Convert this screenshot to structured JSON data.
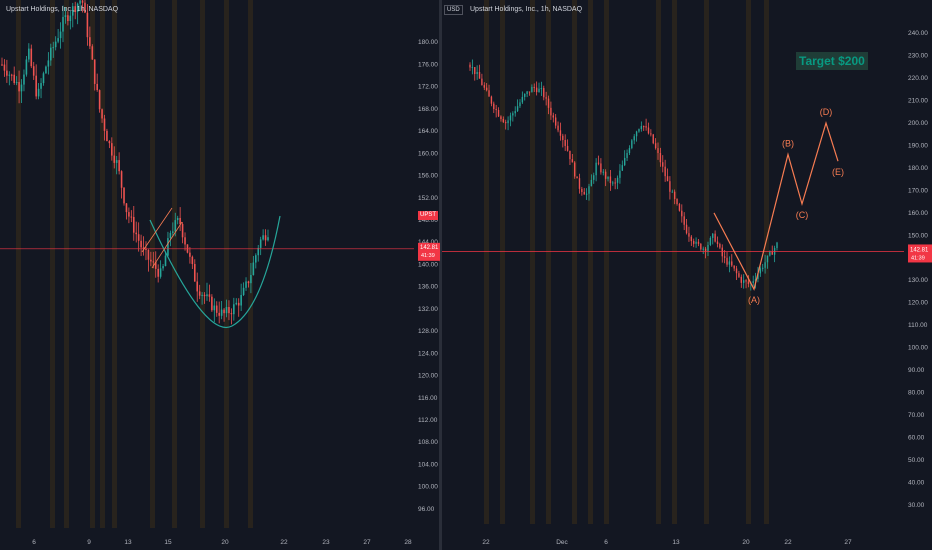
{
  "left_panel": {
    "title": "Upstart Holdings, Inc., 1h, NASDAQ",
    "price_badge": "142.81",
    "price_badge_sub": "41:39",
    "ticker_badge": "UPST"
  },
  "right_panel": {
    "title": "Upstart Holdings, Inc., 1h, NASDAQ",
    "currency": "USD",
    "price_badge": "142.81",
    "price_badge_sub": "41:39",
    "target_label": "Target $200",
    "wave_labels": [
      "(A)",
      "(B)",
      "(C)",
      "(D)",
      "(E)"
    ]
  },
  "colors": {
    "background": "#131722",
    "up": "#26a69a",
    "down": "#ef5350",
    "price_line": "#f23645",
    "curve": "#26a69a",
    "session_stripe": "#3b2e1a",
    "wave": "#f77c52"
  },
  "chart_data": [
    {
      "type": "candlestick",
      "title": "Upstart Holdings, Inc., 1h, NASDAQ",
      "x_ticks": [
        "6",
        "9",
        "13",
        "15",
        "20",
        "22",
        "23",
        "27",
        "28"
      ],
      "y_ticks": [
        96,
        100,
        104,
        108,
        112,
        116,
        120,
        124,
        128,
        132,
        136,
        140,
        144,
        148,
        152,
        156,
        160,
        164,
        168,
        172,
        176,
        180
      ],
      "ylim": [
        94,
        184
      ],
      "last_price": 142.81,
      "close_path": [
        176,
        174,
        172,
        178,
        170,
        176,
        180,
        184,
        186,
        188,
        178,
        168,
        162,
        158,
        150,
        146,
        142,
        140,
        138,
        146,
        148,
        142,
        136,
        134,
        132,
        131,
        132,
        134,
        138,
        144,
        146
      ]
    },
    {
      "type": "candlestick",
      "title": "Upstart Holdings, Inc., 1h, NASDAQ",
      "x_ticks": [
        "22",
        "Dec",
        "6",
        "13",
        "20",
        "22",
        "27"
      ],
      "y_ticks": [
        30,
        40,
        50,
        60,
        70,
        80,
        90,
        100,
        110,
        120,
        130,
        140,
        150,
        160,
        170,
        180,
        190,
        200,
        210,
        220,
        230,
        240
      ],
      "ylim": [
        25,
        245
      ],
      "last_price": 142.81,
      "close_path": [
        226,
        220,
        212,
        205,
        200,
        206,
        212,
        216,
        214,
        204,
        196,
        186,
        172,
        168,
        182,
        176,
        172,
        182,
        194,
        200,
        194,
        184,
        172,
        162,
        152,
        146,
        144,
        150,
        140,
        136,
        130,
        128,
        134,
        140,
        146
      ],
      "wave_points": [
        {
          "label": "(A)",
          "value": 126
        },
        {
          "label": "(B)",
          "value": 186
        },
        {
          "label": "(C)",
          "value": 164
        },
        {
          "label": "(D)",
          "value": 200
        },
        {
          "label": "(E)",
          "value": 183
        }
      ]
    }
  ]
}
